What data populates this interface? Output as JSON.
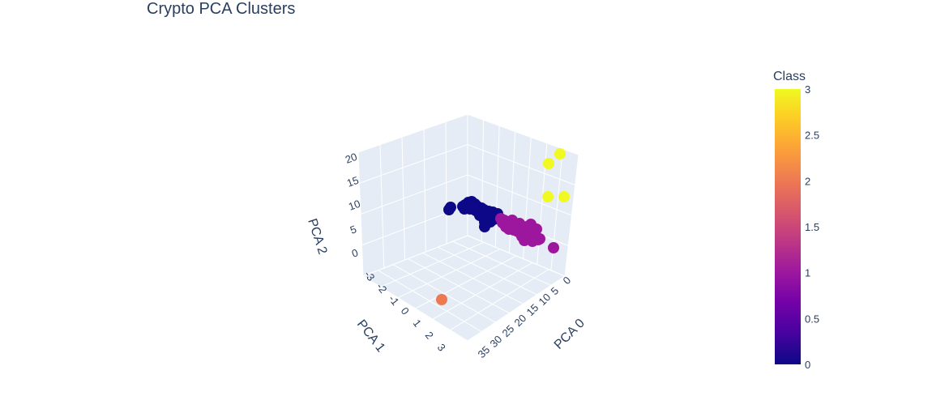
{
  "chart_data": {
    "type": "scatter3d",
    "title": "Crypto PCA Clusters",
    "axes": {
      "x": {
        "label": "PCA 0",
        "ticks": [
          "0",
          "5",
          "10",
          "15",
          "20",
          "25",
          "30",
          "35"
        ],
        "range": [
          -3,
          35
        ]
      },
      "y": {
        "label": "PCA 1",
        "ticks": [
          "-3",
          "-2",
          "-1",
          "0",
          "1",
          "2",
          "3"
        ],
        "range": [
          -3,
          3.2
        ]
      },
      "z": {
        "label": "PCA 2",
        "ticks": [
          "0",
          "5",
          "10",
          "15",
          "20"
        ],
        "range": [
          -2,
          21
        ]
      }
    },
    "colorbar": {
      "title": "Class",
      "ticks": [
        "0",
        "0.5",
        "1",
        "1.5",
        "2",
        "2.5",
        "3"
      ],
      "min": 0,
      "max": 3,
      "colors": [
        "#0d0887",
        "#46039f",
        "#7201a8",
        "#9c179e",
        "#bd3786",
        "#d8576b",
        "#ed7953",
        "#fb9f3a",
        "#fdca26",
        "#f0f921"
      ]
    },
    "series": [
      {
        "class": 0,
        "color": "#0d0887",
        "count": 34
      },
      {
        "class": 1,
        "color": "#9c179e",
        "count": 34
      },
      {
        "class": 2,
        "color": "#ed7953",
        "count": 1
      },
      {
        "class": 3,
        "color": "#f0f921",
        "count": 4
      }
    ]
  }
}
